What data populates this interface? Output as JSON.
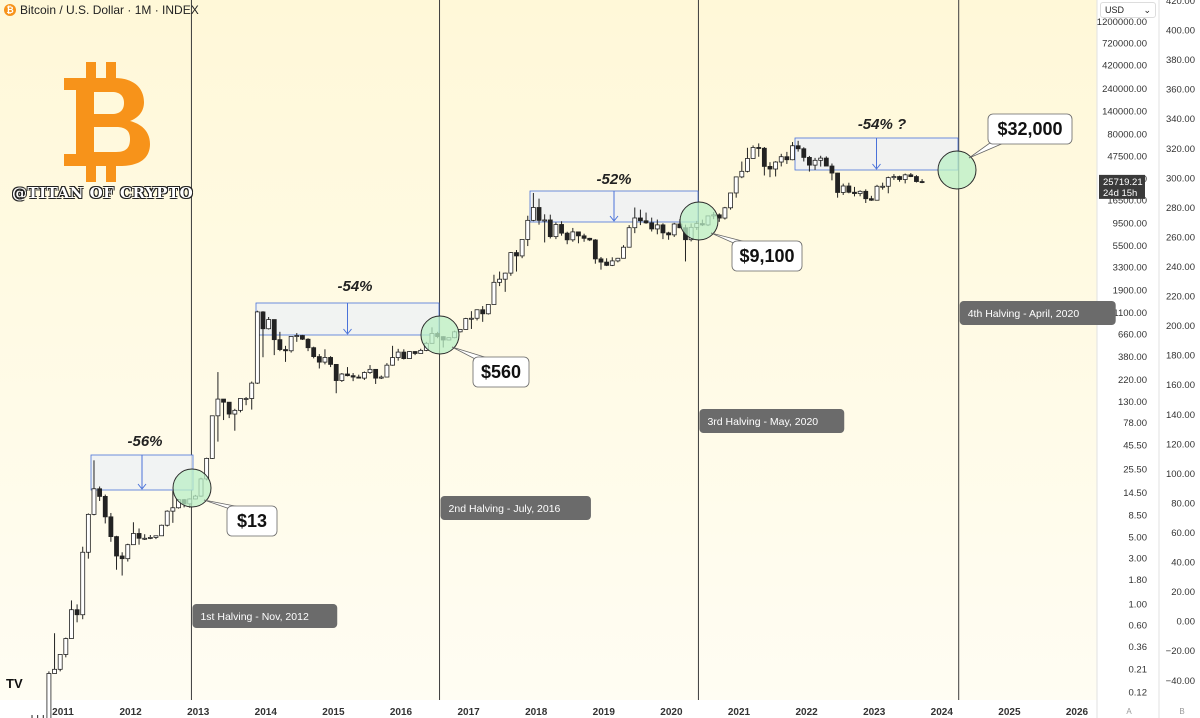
{
  "header": {
    "symbol_title": "Bitcoin / U.S. Dollar · 1M · INDEX",
    "coin_icon": "bitcoin-coin-icon"
  },
  "currency_select": {
    "value": "USD",
    "icon": "chevron-down-icon"
  },
  "branding": {
    "watermark": "@TITAN OF CRYPTO",
    "logo_icon": "bitcoin-logo-icon",
    "logo_color": "#f7931a",
    "platform_icon": "tradingview-logo-icon",
    "platform_text": "TV"
  },
  "footer_buttons": [
    "A",
    "B"
  ],
  "colors": {
    "background_top": "#fff8d8",
    "background_bottom": "#fffdf3",
    "halving_box": "#eef1f4",
    "halving_label": "#6b6b6b",
    "circle": "#b9efc5",
    "arrow": "#4a72d9"
  },
  "chart_data": {
    "type": "candlestick",
    "title": "Bitcoin / U.S. Dollar · 1M · INDEX",
    "x_ticks": [
      "2011",
      "2012",
      "2013",
      "2014",
      "2015",
      "2016",
      "2017",
      "2018",
      "2019",
      "2020",
      "2021",
      "2022",
      "2023",
      "2024",
      "2025",
      "2026"
    ],
    "y_log_ticks": [
      "1200000.00",
      "720000.00",
      "420000.00",
      "240000.00",
      "140000.00",
      "80000.00",
      "47500.00",
      "27500.00",
      "16500.00",
      "9500.00",
      "5500.00",
      "3300.00",
      "1900.00",
      "1100.00",
      "660.00",
      "380.00",
      "220.00",
      "130.00",
      "78.00",
      "45.50",
      "25.50",
      "14.50",
      "8.50",
      "5.00",
      "3.00",
      "1.80",
      "1.00",
      "0.60",
      "0.36",
      "0.21",
      "0.12"
    ],
    "y_right_ticks": [
      "420.00",
      "400.00",
      "380.00",
      "360.00",
      "340.00",
      "320.00",
      "300.00",
      "280.00",
      "260.00",
      "240.00",
      "220.00",
      "200.00",
      "180.00",
      "160.00",
      "140.00",
      "120.00",
      "100.00",
      "80.00",
      "60.00",
      "40.00",
      "20.00",
      "0.00",
      "−20.00",
      "−40.00"
    ],
    "y_scale": "log",
    "last_price": "25719.21",
    "countdown": "24d 15h",
    "halvings": [
      {
        "label": "1st Halving - Nov, 2012"
      },
      {
        "label": "2nd Halving - July, 2016"
      },
      {
        "label": "3rd Halving - May, 2020"
      },
      {
        "label": "4th Halving - April, 2020"
      }
    ],
    "drawdowns": [
      {
        "label": "-56%"
      },
      {
        "label": "-54%"
      },
      {
        "label": "-52%"
      },
      {
        "label": "-54% ?"
      }
    ],
    "halving_prices": [
      {
        "label": "$13"
      },
      {
        "label": "$560"
      },
      {
        "label": "$9,100"
      },
      {
        "label": "$32,000"
      }
    ],
    "candles": [
      [
        "2010-07",
        0.05,
        0.07,
        0.04,
        0.06
      ],
      [
        "2010-08",
        0.06,
        0.07,
        0.05,
        0.06
      ],
      [
        "2010-09",
        0.06,
        0.07,
        0.05,
        0.06
      ],
      [
        "2010-10",
        0.06,
        0.2,
        0.06,
        0.19
      ],
      [
        "2010-11",
        0.19,
        0.5,
        0.19,
        0.21
      ],
      [
        "2010-12",
        0.21,
        0.3,
        0.2,
        0.3
      ],
      [
        "2011-01",
        0.3,
        0.45,
        0.28,
        0.44
      ],
      [
        "2011-02",
        0.44,
        1.1,
        0.44,
        0.88
      ],
      [
        "2011-03",
        0.88,
        1.0,
        0.65,
        0.78
      ],
      [
        "2011-04",
        0.78,
        4.0,
        0.7,
        3.5
      ],
      [
        "2011-05",
        3.5,
        8.9,
        3.0,
        8.7
      ],
      [
        "2011-06",
        8.7,
        31.9,
        8.5,
        16.1
      ],
      [
        "2011-07",
        16.1,
        17.0,
        12.0,
        13.4
      ],
      [
        "2011-08",
        13.4,
        14.0,
        7.0,
        8.2
      ],
      [
        "2011-09",
        8.2,
        9.0,
        4.5,
        5.1
      ],
      [
        "2011-10",
        5.1,
        5.2,
        2.3,
        3.2
      ],
      [
        "2011-11",
        3.2,
        3.5,
        2.0,
        3.0
      ],
      [
        "2011-12",
        3.0,
        4.3,
        2.8,
        4.2
      ],
      [
        "2012-01",
        4.2,
        7.2,
        4.2,
        5.5
      ],
      [
        "2012-02",
        5.5,
        6.2,
        4.2,
        4.9
      ],
      [
        "2012-03",
        4.9,
        5.4,
        4.7,
        4.9
      ],
      [
        "2012-04",
        4.9,
        5.3,
        4.8,
        5.0
      ],
      [
        "2012-05",
        5.0,
        5.2,
        4.8,
        5.2
      ],
      [
        "2012-06",
        5.2,
        6.8,
        5.2,
        6.7
      ],
      [
        "2012-07",
        6.7,
        9.6,
        6.5,
        9.4
      ],
      [
        "2012-08",
        9.4,
        15.4,
        7.1,
        10.2
      ],
      [
        "2012-09",
        10.2,
        12.6,
        10.0,
        12.4
      ],
      [
        "2012-10",
        12.4,
        12.6,
        10.3,
        11.2
      ],
      [
        "2012-11",
        11.2,
        12.8,
        10.2,
        12.6
      ],
      [
        "2012-12",
        12.6,
        13.9,
        12.5,
        13.5
      ],
      [
        "2013-01",
        13.5,
        21.0,
        13.3,
        20.4
      ],
      [
        "2013-02",
        20.4,
        34.0,
        19.7,
        33.4
      ],
      [
        "2013-03",
        33.4,
        93.0,
        33.0,
        93.0
      ],
      [
        "2013-04",
        93.0,
        266.0,
        50.0,
        139.0
      ],
      [
        "2013-05",
        139.0,
        139.0,
        84.0,
        129.0
      ],
      [
        "2013-06",
        129.0,
        129.0,
        88.0,
        97.0
      ],
      [
        "2013-07",
        97.0,
        110.0,
        65.0,
        106.0
      ],
      [
        "2013-08",
        106.0,
        140.0,
        101.0,
        141.0
      ],
      [
        "2013-09",
        141.0,
        146.0,
        120.0,
        141.0
      ],
      [
        "2013-10",
        141.0,
        212.0,
        108.0,
        204.0
      ],
      [
        "2013-11",
        204.0,
        1163.0,
        200.0,
        1130.0
      ],
      [
        "2013-12",
        1130.0,
        1150.0,
        380.0,
        754.0
      ],
      [
        "2014-01",
        754.0,
        1000.0,
        740.0,
        940.0
      ],
      [
        "2014-02",
        940.0,
        940.0,
        400.0,
        580.0
      ],
      [
        "2014-03",
        580.0,
        700.0,
        440.0,
        457.0
      ],
      [
        "2014-04",
        457.0,
        500.0,
        340.0,
        444.0
      ],
      [
        "2014-05",
        444.0,
        630.0,
        425.0,
        627.0
      ],
      [
        "2014-06",
        627.0,
        680.0,
        550.0,
        640.0
      ],
      [
        "2014-07",
        640.0,
        650.0,
        575.0,
        586.0
      ],
      [
        "2014-08",
        586.0,
        600.0,
        440.0,
        478.0
      ],
      [
        "2014-09",
        478.0,
        490.0,
        370.0,
        386.0
      ],
      [
        "2014-10",
        386.0,
        410.0,
        290.0,
        338.0
      ],
      [
        "2014-11",
        338.0,
        460.0,
        320.0,
        378.0
      ],
      [
        "2014-12",
        378.0,
        390.0,
        300.0,
        320.0
      ],
      [
        "2015-01",
        320.0,
        320.0,
        160.0,
        217.0
      ],
      [
        "2015-02",
        217.0,
        260.0,
        210.0,
        254.0
      ],
      [
        "2015-03",
        254.0,
        300.0,
        240.0,
        244.0
      ],
      [
        "2015-04",
        244.0,
        260.0,
        214.0,
        236.0
      ],
      [
        "2015-05",
        236.0,
        250.0,
        228.0,
        230.0
      ],
      [
        "2015-06",
        230.0,
        270.0,
        220.0,
        263.0
      ],
      [
        "2015-07",
        263.0,
        315.0,
        255.0,
        284.0
      ],
      [
        "2015-08",
        284.0,
        285.0,
        200.0,
        230.0
      ],
      [
        "2015-09",
        230.0,
        245.0,
        225.0,
        236.0
      ],
      [
        "2015-10",
        236.0,
        330.0,
        235.0,
        314.0
      ],
      [
        "2015-11",
        314.0,
        500.0,
        310.0,
        377.0
      ],
      [
        "2015-12",
        377.0,
        465.0,
        350.0,
        430.0
      ],
      [
        "2016-01",
        430.0,
        460.0,
        360.0,
        368.0
      ],
      [
        "2016-02",
        368.0,
        440.0,
        365.0,
        436.0
      ],
      [
        "2016-03",
        436.0,
        440.0,
        400.0,
        416.0
      ],
      [
        "2016-04",
        416.0,
        466.0,
        415.0,
        448.0
      ],
      [
        "2016-05",
        448.0,
        550.0,
        440.0,
        531.0
      ],
      [
        "2016-06",
        531.0,
        780.0,
        530.0,
        673.0
      ],
      [
        "2016-07",
        673.0,
        700.0,
        600.0,
        624.0
      ],
      [
        "2016-08",
        624.0,
        630.0,
        480.0,
        575.0
      ],
      [
        "2016-09",
        575.0,
        610.0,
        570.0,
        608.0
      ],
      [
        "2016-10",
        608.0,
        720.0,
        600.0,
        700.0
      ],
      [
        "2016-11",
        700.0,
        750.0,
        690.0,
        742.0
      ],
      [
        "2016-12",
        742.0,
        980.0,
        740.0,
        963.0
      ],
      [
        "2017-01",
        963.0,
        1150.0,
        750.0,
        970.0
      ],
      [
        "2017-02",
        970.0,
        1200.0,
        920.0,
        1190.0
      ],
      [
        "2017-03",
        1190.0,
        1300.0,
        890.0,
        1080.0
      ],
      [
        "2017-04",
        1080.0,
        1350.0,
        1060.0,
        1350.0
      ],
      [
        "2017-05",
        1350.0,
        2760.0,
        1350.0,
        2300.0
      ],
      [
        "2017-06",
        2300.0,
        2980.0,
        2100.0,
        2480.0
      ],
      [
        "2017-07",
        2480.0,
        2900.0,
        1830.0,
        2870.0
      ],
      [
        "2017-08",
        2870.0,
        4760.0,
        2690.0,
        4700.0
      ],
      [
        "2017-09",
        4700.0,
        5000.0,
        2980.0,
        4340.0
      ],
      [
        "2017-10",
        4340.0,
        6470.0,
        4110.0,
        6450.0
      ],
      [
        "2017-11",
        6450.0,
        11400.0,
        5500.0,
        10200.0
      ],
      [
        "2017-12",
        10200.0,
        19700.0,
        10000.0,
        13900.0
      ],
      [
        "2018-01",
        13900.0,
        17200.0,
        9200.0,
        10200.0
      ],
      [
        "2018-02",
        10200.0,
        11800.0,
        6000.0,
        10300.0
      ],
      [
        "2018-03",
        10300.0,
        11700.0,
        6600.0,
        6900.0
      ],
      [
        "2018-04",
        6900.0,
        9700.0,
        6500.0,
        9240.0
      ],
      [
        "2018-05",
        9240.0,
        9990.0,
        7060.0,
        7500.0
      ],
      [
        "2018-06",
        7500.0,
        7760.0,
        5750.0,
        6390.0
      ],
      [
        "2018-07",
        6390.0,
        8500.0,
        6100.0,
        7730.0
      ],
      [
        "2018-08",
        7730.0,
        7760.0,
        5880.0,
        7030.0
      ],
      [
        "2018-09",
        7030.0,
        7400.0,
        6100.0,
        6625.0
      ],
      [
        "2018-10",
        6625.0,
        6700.0,
        6200.0,
        6370.0
      ],
      [
        "2018-11",
        6370.0,
        6500.0,
        3600.0,
        4040.0
      ],
      [
        "2018-12",
        4040.0,
        4230.0,
        3120.0,
        3740.0
      ],
      [
        "2019-01",
        3740.0,
        4100.0,
        3400.0,
        3460.0
      ],
      [
        "2019-02",
        3460.0,
        4200.0,
        3400.0,
        3850.0
      ],
      [
        "2019-03",
        3850.0,
        4140.0,
        3720.0,
        4100.0
      ],
      [
        "2019-04",
        4100.0,
        5620.0,
        4090.0,
        5350.0
      ],
      [
        "2019-05",
        5350.0,
        9100.0,
        5330.0,
        8550.0
      ],
      [
        "2019-06",
        8550.0,
        13900.0,
        7500.0,
        10800.0
      ],
      [
        "2019-07",
        10800.0,
        13200.0,
        9100.0,
        10100.0
      ],
      [
        "2019-08",
        10100.0,
        12300.0,
        9400.0,
        9600.0
      ],
      [
        "2019-09",
        9600.0,
        10900.0,
        7800.0,
        8300.0
      ],
      [
        "2019-10",
        8300.0,
        10400.0,
        7300.0,
        9150.0
      ],
      [
        "2019-11",
        9150.0,
        9500.0,
        6500.0,
        7550.0
      ],
      [
        "2019-12",
        7550.0,
        7750.0,
        6400.0,
        7200.0
      ],
      [
        "2020-01",
        7200.0,
        9600.0,
        6850.0,
        9350.0
      ],
      [
        "2020-02",
        9350.0,
        10500.0,
        8450.0,
        8540.0
      ],
      [
        "2020-03",
        8540.0,
        9200.0,
        3800.0,
        6410.0
      ],
      [
        "2020-04",
        6410.0,
        9460.0,
        6150.0,
        8620.0
      ],
      [
        "2020-05",
        8620.0,
        10070.0,
        8100.0,
        9450.0
      ],
      [
        "2020-06",
        9450.0,
        10380.0,
        8900.0,
        9140.0
      ],
      [
        "2020-07",
        9140.0,
        11450.0,
        8900.0,
        11350.0
      ],
      [
        "2020-08",
        11350.0,
        12470.0,
        10500.0,
        11650.0
      ],
      [
        "2020-09",
        11650.0,
        12060.0,
        9850.0,
        10780.0
      ],
      [
        "2020-10",
        10780.0,
        14100.0,
        10400.0,
        13800.0
      ],
      [
        "2020-11",
        13800.0,
        19860.0,
        13200.0,
        19700.0
      ],
      [
        "2020-12",
        19700.0,
        29300.0,
        17600.0,
        28990.0
      ],
      [
        "2021-01",
        28990.0,
        41950.0,
        28130.0,
        33140.0
      ],
      [
        "2021-02",
        33140.0,
        58350.0,
        32300.0,
        45140.0
      ],
      [
        "2021-03",
        45140.0,
        61800.0,
        44950.0,
        58800.0
      ],
      [
        "2021-04",
        58800.0,
        64850.0,
        47050.0,
        57700.0
      ],
      [
        "2021-05",
        57700.0,
        59500.0,
        30000.0,
        37300.0
      ],
      [
        "2021-06",
        37300.0,
        41300.0,
        28800.0,
        35040.0
      ],
      [
        "2021-07",
        35040.0,
        42300.0,
        29300.0,
        41460.0
      ],
      [
        "2021-08",
        41460.0,
        50500.0,
        37300.0,
        47100.0
      ],
      [
        "2021-09",
        47100.0,
        52900.0,
        39600.0,
        43800.0
      ],
      [
        "2021-10",
        43800.0,
        67000.0,
        43300.0,
        61300.0
      ],
      [
        "2021-11",
        61300.0,
        69000.0,
        53250.0,
        57000.0
      ],
      [
        "2021-12",
        57000.0,
        59100.0,
        42000.0,
        46300.0
      ],
      [
        "2022-01",
        46300.0,
        47990.0,
        32950.0,
        38480.0
      ],
      [
        "2022-02",
        38480.0,
        45800.0,
        34300.0,
        43190.0
      ],
      [
        "2022-03",
        43190.0,
        48200.0,
        37150.0,
        45540.0
      ],
      [
        "2022-04",
        45540.0,
        47450.0,
        37700.0,
        37640.0
      ],
      [
        "2022-05",
        37640.0,
        40000.0,
        26700.0,
        31800.0
      ],
      [
        "2022-06",
        31800.0,
        31950.0,
        17600.0,
        19940.0
      ],
      [
        "2022-07",
        19940.0,
        24670.0,
        18780.0,
        23300.0
      ],
      [
        "2022-08",
        23300.0,
        25200.0,
        19550.0,
        20050.0
      ],
      [
        "2022-09",
        20050.0,
        22800.0,
        18150.0,
        19430.0
      ],
      [
        "2022-10",
        19430.0,
        21000.0,
        18200.0,
        20500.0
      ],
      [
        "2022-11",
        20500.0,
        21500.0,
        15480.0,
        17170.0
      ],
      [
        "2022-12",
        17170.0,
        18400.0,
        16300.0,
        16550.0
      ],
      [
        "2023-01",
        16550.0,
        23950.0,
        16500.0,
        23140.0
      ],
      [
        "2023-02",
        23140.0,
        25250.0,
        21350.0,
        23150.0
      ],
      [
        "2023-03",
        23150.0,
        29200.0,
        19550.0,
        28480.0
      ],
      [
        "2023-04",
        28480.0,
        31000.0,
        26950.0,
        29250.0
      ],
      [
        "2023-05",
        29250.0,
        29850.0,
        25820.0,
        27220.0
      ],
      [
        "2023-06",
        27220.0,
        31400.0,
        24800.0,
        30480.0
      ],
      [
        "2023-07",
        30480.0,
        31800.0,
        28860.0,
        29230.0
      ],
      [
        "2023-08",
        29230.0,
        30230.0,
        25330.0,
        25930.0
      ],
      [
        "2023-09",
        25930.0,
        27480.0,
        24930.0,
        25719.21
      ]
    ]
  }
}
